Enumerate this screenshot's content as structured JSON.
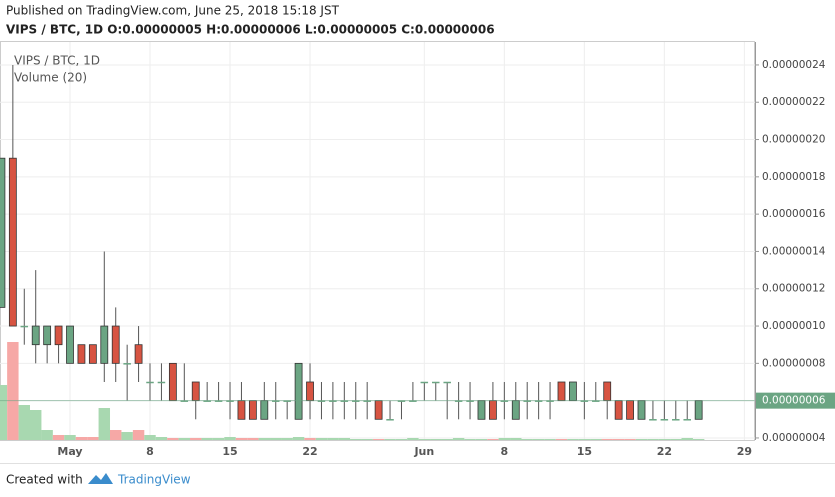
{
  "published": "Published on TradingView.com, June 25, 2018 15:18 JST",
  "ohlc_header": "VIPS / BTC, 1D  O:0.00000005 H:0.00000006 L:0.00000005 C:0.00000006",
  "footer": {
    "created_with": "Created with",
    "brand": "TradingView"
  },
  "chart_data": {
    "type": "candlestick",
    "symbol": "VIPS / BTC, 1D",
    "volume_label": "Volume (20)",
    "categories": [
      null,
      null,
      null,
      null,
      null,
      null,
      "May",
      null,
      null,
      null,
      null,
      null,
      null,
      "8",
      null,
      null,
      null,
      null,
      null,
      null,
      "15",
      null,
      null,
      null,
      null,
      null,
      null,
      "22",
      null,
      null,
      null,
      null,
      null,
      null,
      null,
      null,
      null,
      "Jun",
      null,
      null,
      null,
      null,
      null,
      null,
      "8",
      null,
      null,
      null,
      null,
      null,
      null,
      "15",
      null,
      null,
      null,
      null,
      null,
      null,
      "22",
      null,
      null,
      null,
      null,
      null,
      null,
      "29",
      null
    ],
    "open": [
      1.1e-07,
      1.9e-07,
      1e-07,
      9e-08,
      9e-08,
      1e-07,
      8e-08,
      9e-08,
      9e-08,
      8e-08,
      1e-07,
      8e-08,
      9e-08,
      7e-08,
      7e-08,
      8e-08,
      6e-08,
      7e-08,
      6e-08,
      6e-08,
      6e-08,
      6e-08,
      6e-08,
      5e-08,
      6e-08,
      6e-08,
      5e-08,
      7e-08,
      6e-08,
      6e-08,
      6e-08,
      6e-08,
      6e-08,
      6e-08,
      5e-08,
      6e-08,
      6e-08,
      7e-08,
      7e-08,
      7e-08,
      6e-08,
      6e-08,
      5e-08,
      6e-08,
      6e-08,
      5e-08,
      6e-08,
      6e-08,
      6e-08,
      7e-08,
      6e-08,
      6e-08,
      6e-08,
      7e-08,
      6e-08,
      6e-08,
      5e-08,
      5e-08,
      5e-08,
      5e-08,
      5e-08,
      5e-08,
      null,
      null,
      null,
      null,
      null
    ],
    "high": [
      1.9e-07,
      2.4e-07,
      1.2e-07,
      1.3e-07,
      1e-07,
      1e-07,
      1e-07,
      9e-08,
      9e-08,
      1.4e-07,
      1.1e-07,
      9e-08,
      1e-07,
      8e-08,
      8e-08,
      8e-08,
      8e-08,
      7e-08,
      7e-08,
      7e-08,
      7e-08,
      7e-08,
      6e-08,
      7e-08,
      7e-08,
      6e-08,
      8e-08,
      8e-08,
      7e-08,
      7e-08,
      7e-08,
      7e-08,
      7e-08,
      6e-08,
      6e-08,
      6e-08,
      7e-08,
      7e-08,
      7e-08,
      7e-08,
      7e-08,
      7e-08,
      6e-08,
      7e-08,
      7e-08,
      7e-08,
      7e-08,
      7e-08,
      7e-08,
      7e-08,
      7e-08,
      7e-08,
      7e-08,
      7e-08,
      6e-08,
      6e-08,
      6e-08,
      6e-08,
      6e-08,
      6e-08,
      6e-08,
      6e-08,
      null,
      null,
      null,
      null,
      null
    ],
    "low": [
      1.1e-07,
      1e-07,
      9e-08,
      8e-08,
      8e-08,
      8e-08,
      8e-08,
      8e-08,
      8e-08,
      7e-08,
      7e-08,
      6e-08,
      7e-08,
      6e-08,
      6e-08,
      6e-08,
      6e-08,
      5e-08,
      6e-08,
      6e-08,
      5e-08,
      5e-08,
      5e-08,
      5e-08,
      5e-08,
      5e-08,
      5e-08,
      5e-08,
      5e-08,
      5e-08,
      5e-08,
      5e-08,
      5e-08,
      5e-08,
      5e-08,
      5e-08,
      6e-08,
      6e-08,
      6e-08,
      5e-08,
      5e-08,
      5e-08,
      5e-08,
      5e-08,
      5e-08,
      5e-08,
      5e-08,
      5e-08,
      5e-08,
      6e-08,
      6e-08,
      5e-08,
      6e-08,
      5e-08,
      5e-08,
      5e-08,
      5e-08,
      5e-08,
      5e-08,
      5e-08,
      5e-08,
      5e-08,
      null,
      null,
      null,
      null,
      null
    ],
    "close": [
      1.9e-07,
      1e-07,
      1e-07,
      1e-07,
      1e-07,
      9e-08,
      1e-07,
      8e-08,
      8e-08,
      1e-07,
      8e-08,
      8e-08,
      8e-08,
      7e-08,
      7e-08,
      6e-08,
      6e-08,
      6e-08,
      6e-08,
      6e-08,
      6e-08,
      5e-08,
      5e-08,
      6e-08,
      6e-08,
      6e-08,
      8e-08,
      6e-08,
      6e-08,
      6e-08,
      6e-08,
      6e-08,
      6e-08,
      5e-08,
      5e-08,
      6e-08,
      6e-08,
      7e-08,
      7e-08,
      7e-08,
      6e-08,
      6e-08,
      6e-08,
      5e-08,
      6e-08,
      6e-08,
      6e-08,
      6e-08,
      6e-08,
      6e-08,
      7e-08,
      6e-08,
      6e-08,
      6e-08,
      5e-08,
      5e-08,
      6e-08,
      5e-08,
      5e-08,
      5e-08,
      5e-08,
      6e-08,
      null,
      null,
      null,
      null,
      null
    ],
    "volume": [
      55,
      98,
      35,
      30,
      10,
      5,
      5,
      3,
      3,
      32,
      10,
      8,
      10,
      5,
      3,
      2,
      2,
      2,
      2,
      2,
      3,
      2,
      2,
      2,
      2,
      2,
      3,
      2,
      2,
      2,
      2,
      1,
      1,
      1,
      1,
      1,
      2,
      1,
      1,
      1,
      2,
      1,
      1,
      1,
      2,
      2,
      1,
      1,
      1,
      1,
      1,
      1,
      1,
      1,
      1,
      1,
      1,
      1,
      1,
      1,
      2,
      1,
      null,
      null,
      null,
      null,
      null
    ],
    "up_color": "#6ba583",
    "down_color": "#d75442",
    "volume_up_color": "#a8d8b0",
    "volume_down_color": "#f6a8a6",
    "ylim": [
      3.89e-08,
      2.523e-07
    ],
    "yticks": [
      {
        "value": 4e-08,
        "label": "0.00000004"
      },
      {
        "value": 6e-08,
        "label": "0.00000006"
      },
      {
        "value": 8e-08,
        "label": "0.00000008"
      },
      {
        "value": 1e-07,
        "label": "0.00000010"
      },
      {
        "value": 1.2e-07,
        "label": "0.00000012"
      },
      {
        "value": 1.4e-07,
        "label": "0.00000014"
      },
      {
        "value": 1.6e-07,
        "label": "0.00000016"
      },
      {
        "value": 1.8e-07,
        "label": "0.00000018"
      },
      {
        "value": 2e-07,
        "label": "0.00000020"
      },
      {
        "value": 2.2e-07,
        "label": "0.00000022"
      },
      {
        "value": 2.4e-07,
        "label": "0.00000024"
      }
    ],
    "current_price": {
      "value": 6e-08,
      "label": "0.00000006"
    },
    "grid": true
  }
}
